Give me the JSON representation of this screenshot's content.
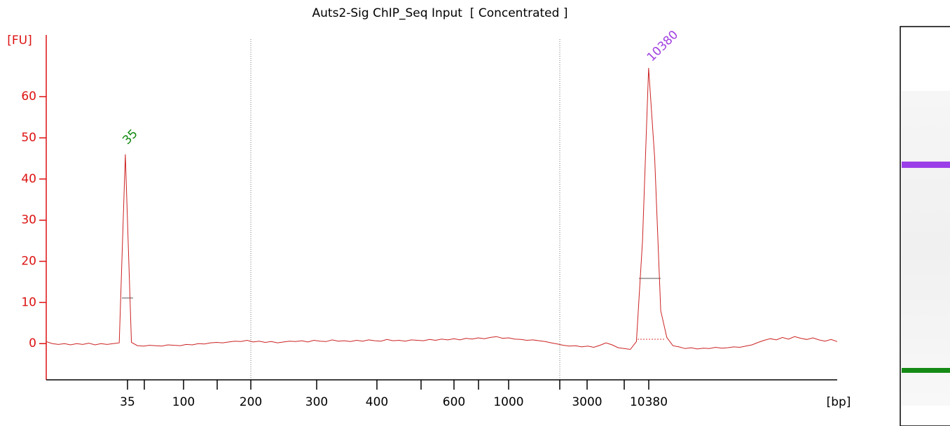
{
  "chart_data": {
    "type": "line",
    "title": "Auts2-Sig ChIP_Seq Input  [ Concentrated ]",
    "y_label": "[FU]",
    "x_label": "[bp]",
    "ylim": [
      -8.8,
      75
    ],
    "yticks": [
      0,
      10,
      20,
      30,
      40,
      50,
      60
    ],
    "xticks": [
      "35",
      null,
      "100",
      null,
      "200",
      "300",
      "400",
      null,
      "600",
      null,
      "1000",
      null,
      "3000",
      null,
      "10380"
    ],
    "annotations": [
      {
        "text": "35",
        "color": "#118811"
      },
      {
        "text": "10380",
        "color": "#a040e0"
      }
    ],
    "axis_color": "#dd1111",
    "series": [
      {
        "color": "#cc2222",
        "values": [
          0.5,
          0,
          -0.2,
          0,
          -0.3,
          0,
          -0.2,
          0.1,
          -0.3,
          0,
          -0.2,
          0,
          0.2,
          46,
          0.3,
          -0.5,
          -0.6,
          -0.4,
          -0.5,
          -0.6,
          -0.3,
          -0.4,
          -0.5,
          -0.2,
          -0.3,
          0,
          -0.1,
          0.2,
          0.3,
          0.2,
          0.4,
          0.6,
          0.5,
          0.8,
          0.4,
          0.6,
          0.3,
          0.5,
          0.2,
          0.4,
          0.6,
          0.5,
          0.7,
          0.4,
          0.8,
          0.6,
          0.5,
          0.9,
          0.6,
          0.7,
          0.5,
          0.8,
          0.6,
          0.9,
          0.7,
          0.6,
          1.0,
          0.7,
          0.8,
          0.6,
          0.9,
          0.8,
          0.7,
          1.0,
          0.8,
          1.1,
          0.9,
          1.2,
          0.9,
          1.3,
          1.1,
          1.4,
          1.2,
          1.5,
          1.7,
          1.3,
          1.4,
          1.1,
          1.0,
          0.8,
          0.9,
          0.7,
          0.5,
          0.2,
          -0.1,
          -0.4,
          -0.6,
          -0.5,
          -0.8,
          -0.6,
          -0.9,
          -0.4,
          0.2,
          -0.3,
          -1.0,
          -1.2,
          -1.4,
          0.5,
          25,
          67,
          45,
          8,
          1.5,
          -0.5,
          -0.8,
          -1.2,
          -1.0,
          -1.3,
          -1.1,
          -1.2,
          -0.9,
          -1.1,
          -1.0,
          -0.8,
          -0.9,
          -0.6,
          -0.3,
          0.3,
          0.8,
          1.2,
          0.9,
          1.5,
          1.1,
          1.7,
          1.3,
          1.0,
          1.4,
          0.9,
          0.6,
          1.0,
          0.5
        ]
      }
    ]
  }
}
